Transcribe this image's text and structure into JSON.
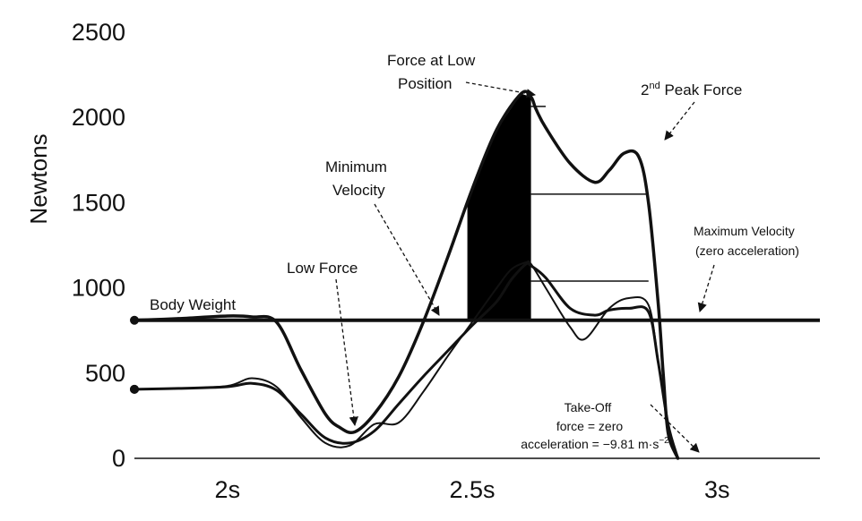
{
  "chart_data": {
    "type": "line",
    "title": "",
    "xlabel": "",
    "ylabel": "Newtons",
    "xlim": [
      1.81,
      3.21
    ],
    "ylim": [
      0,
      2500
    ],
    "y_ticks": [
      0,
      500,
      1000,
      1500,
      2000,
      2500
    ],
    "x_ticks": [
      2.0,
      2.5,
      3.0
    ],
    "x_tick_labels": [
      "2s",
      "2.5s",
      "3s"
    ],
    "body_weight": 810,
    "series": [
      {
        "x": [
          1.81,
          1.9,
          2.0,
          2.05,
          2.1,
          2.15,
          2.2,
          2.23,
          2.26,
          2.3,
          2.35,
          2.4,
          2.45,
          2.5,
          2.55,
          2.6,
          2.62,
          2.63,
          2.65,
          2.7,
          2.75,
          2.78,
          2.81,
          2.84,
          2.86,
          2.88,
          2.89,
          2.9,
          2.92
        ],
        "y": [
          810,
          820,
          835,
          830,
          800,
          520,
          260,
          180,
          155,
          260,
          480,
          800,
          1180,
          1580,
          1930,
          2140,
          2120,
          2050,
          1940,
          1730,
          1620,
          1690,
          1790,
          1770,
          1500,
          900,
          500,
          150,
          0
        ]
      },
      {
        "x": [
          1.81,
          1.9,
          2.0,
          2.05,
          2.1,
          2.15,
          2.2,
          2.25,
          2.3,
          2.35,
          2.4,
          2.45,
          2.5,
          2.55,
          2.58,
          2.61,
          2.62,
          2.65,
          2.7,
          2.75,
          2.78,
          2.82,
          2.86,
          2.88,
          2.9,
          2.92
        ],
        "y": [
          405,
          410,
          420,
          440,
          400,
          260,
          120,
          90,
          160,
          320,
          480,
          630,
          780,
          920,
          1050,
          1140,
          1130,
          1060,
          880,
          840,
          870,
          880,
          860,
          560,
          200,
          0
        ]
      },
      {
        "x": [
          1.81,
          1.9,
          2.0,
          2.05,
          2.1,
          2.15,
          2.2,
          2.25,
          2.3,
          2.35,
          2.4,
          2.45,
          2.5,
          2.55,
          2.58,
          2.61,
          2.62,
          2.65,
          2.7,
          2.73,
          2.78,
          2.82,
          2.86,
          2.88,
          2.9,
          2.92
        ],
        "y": [
          405,
          410,
          425,
          470,
          420,
          240,
          90,
          75,
          200,
          210,
          390,
          600,
          800,
          1000,
          1110,
          1150,
          1140,
          1000,
          770,
          700,
          880,
          940,
          900,
          560,
          200,
          0
        ]
      }
    ],
    "filled_region": {
      "x_start": 2.49,
      "x_end": 2.62,
      "description_value": "area between force curve and body weight"
    },
    "horizontal_markers": [
      {
        "y": 2065,
        "x_start": 2.62,
        "x_end": 2.65
      },
      {
        "y": 1550,
        "x_start": 2.62,
        "x_end": 2.86
      },
      {
        "y": 1040,
        "x_start": 2.62,
        "x_end": 2.86
      }
    ],
    "annotations": {
      "body_weight": "Body Weight",
      "low_force": "Low Force",
      "minimum_velocity_line1": "Minimum",
      "minimum_velocity_line2": "Velocity",
      "force_low_position_line1": "Force at Low",
      "force_low_position_line2": "Position",
      "second_peak_prefix": "2",
      "second_peak_sup": "nd",
      "second_peak_rest": " Peak Force",
      "max_velocity_line1": "Maximum Velocity",
      "max_velocity_line2": "(zero acceleration)",
      "takeoff_line1": "Take-Off",
      "takeoff_line2": "force = zero",
      "takeoff_line3_prefix": "acceleration = −9.81 m·s",
      "takeoff_line3_sup": "−2"
    }
  }
}
